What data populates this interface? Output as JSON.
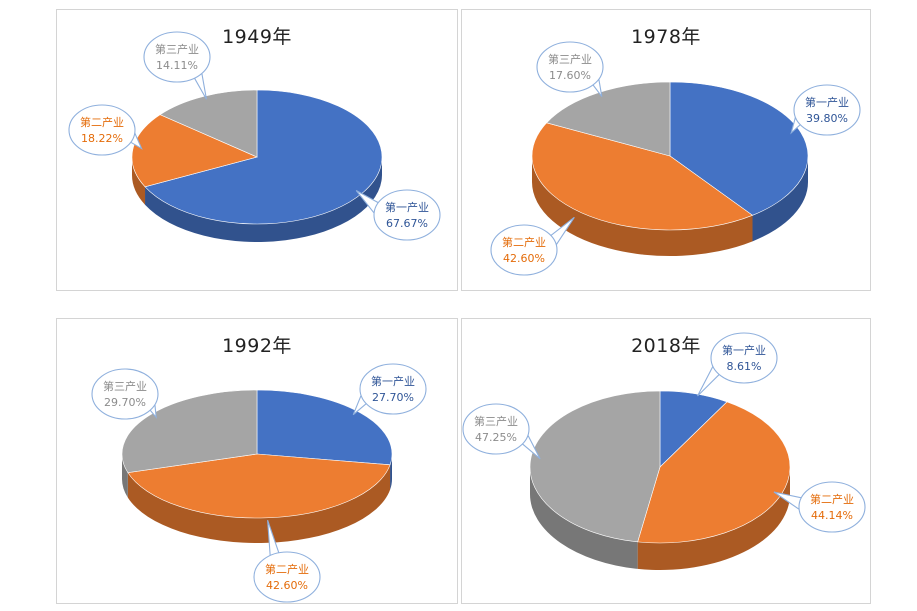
{
  "chart_data": [
    {
      "type": "pie",
      "title": "1949年",
      "slices": [
        {
          "label": "第一产业",
          "value": 67.67,
          "display": "67.67%",
          "color": "#4472c4"
        },
        {
          "label": "第二产业",
          "value": 18.22,
          "display": "18.22%",
          "color": "#ed7d31"
        },
        {
          "label": "第三产业",
          "value": 14.11,
          "display": "14.11%",
          "color": "#a5a5a5"
        }
      ]
    },
    {
      "type": "pie",
      "title": "1978年",
      "slices": [
        {
          "label": "第一产业",
          "value": 39.8,
          "display": "39.80%",
          "color": "#4472c4"
        },
        {
          "label": "第二产业",
          "value": 42.6,
          "display": "42.60%",
          "color": "#ed7d31"
        },
        {
          "label": "第三产业",
          "value": 17.6,
          "display": "17.60%",
          "color": "#a5a5a5"
        }
      ]
    },
    {
      "type": "pie",
      "title": "1992年",
      "slices": [
        {
          "label": "第一产业",
          "value": 27.7,
          "display": "27.70%",
          "color": "#4472c4"
        },
        {
          "label": "第二产业",
          "value": 42.6,
          "display": "42.60%",
          "color": "#ed7d31"
        },
        {
          "label": "第三产业",
          "value": 29.7,
          "display": "29.70%",
          "color": "#a5a5a5"
        }
      ]
    },
    {
      "type": "pie",
      "title": "2018年",
      "slices": [
        {
          "label": "第一产业",
          "value": 8.61,
          "display": "8.61%",
          "color": "#4472c4"
        },
        {
          "label": "第二产业",
          "value": 44.14,
          "display": "44.14%",
          "color": "#ed7d31"
        },
        {
          "label": "第三产业",
          "value": 47.25,
          "display": "47.25%",
          "color": "#a5a5a5"
        }
      ]
    }
  ]
}
